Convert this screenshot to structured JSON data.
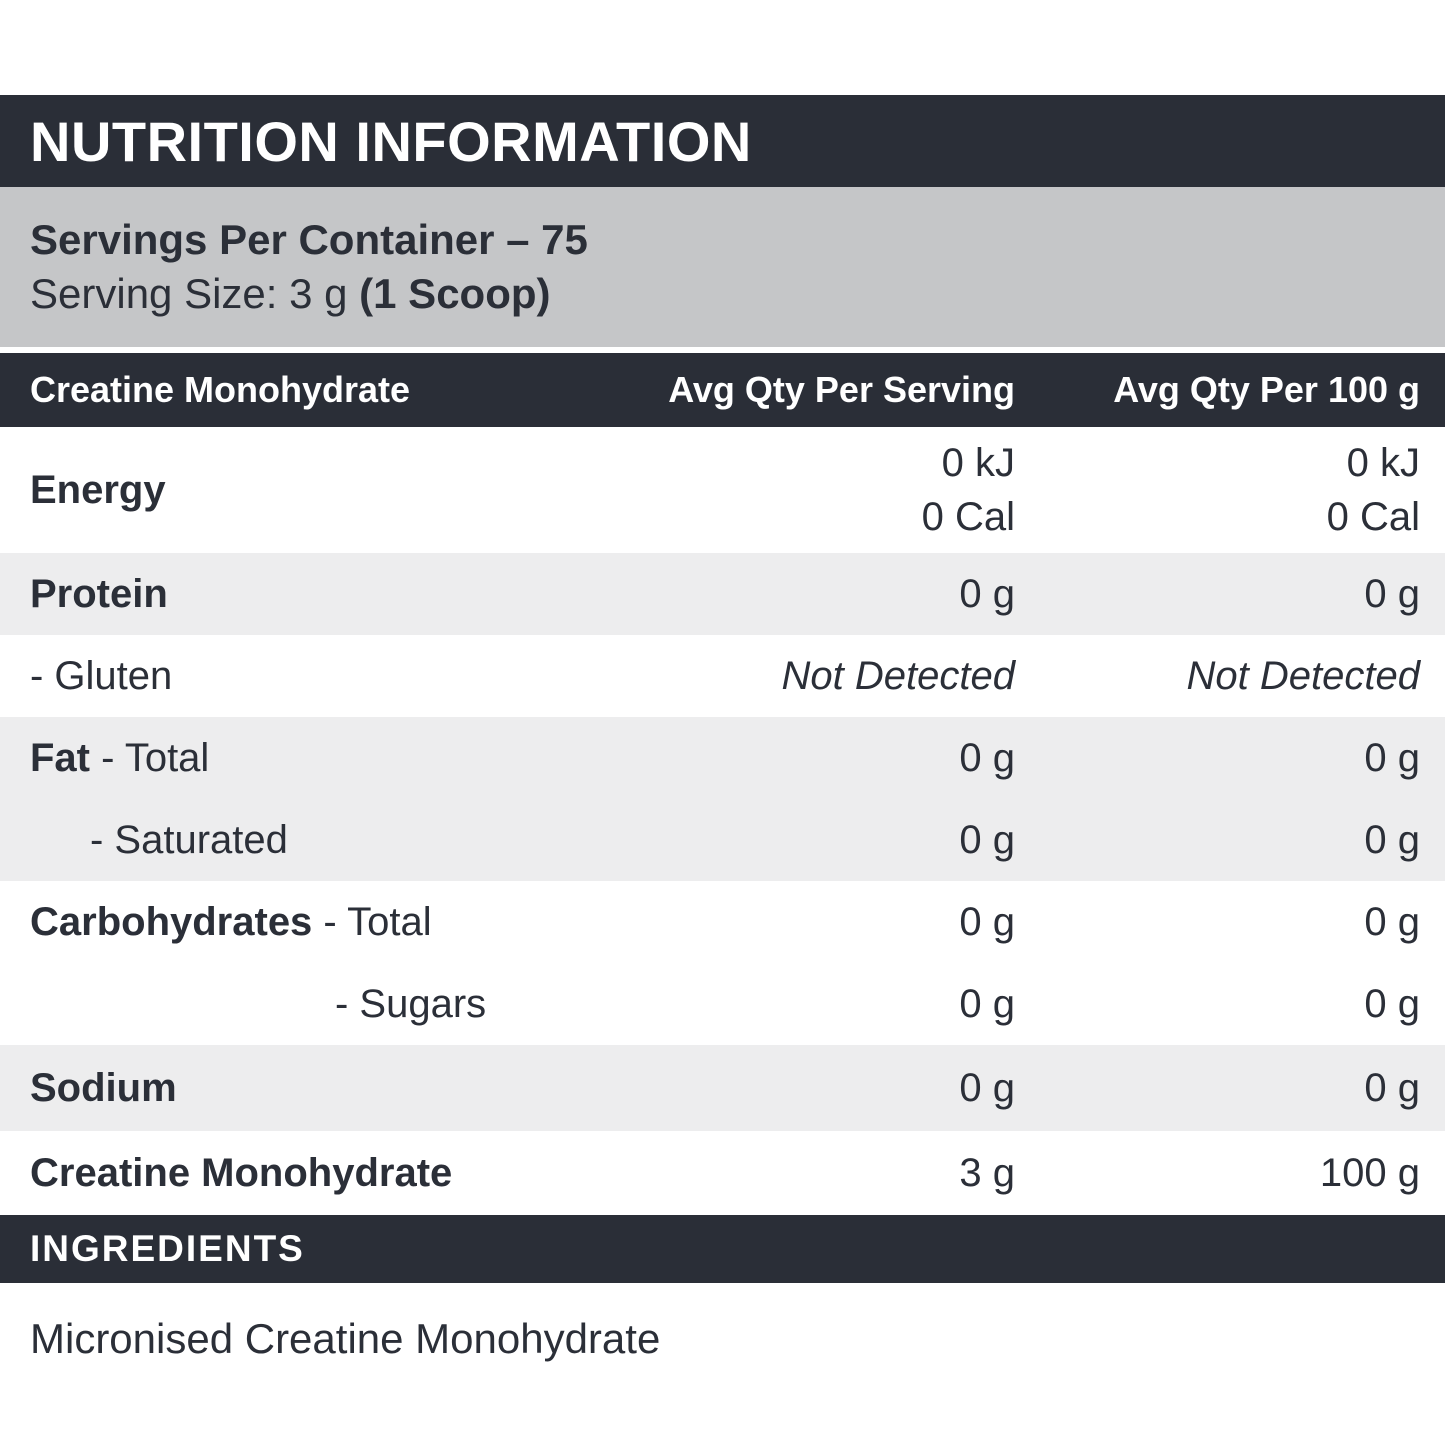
{
  "title": "NUTRITION INFORMATION",
  "servings": {
    "per_container": "Servings Per Container – 75",
    "size_prefix": "Serving Size: 3 g ",
    "size_bold": "(1 Scoop)"
  },
  "table": {
    "header": {
      "col1": "Creatine Monohydrate",
      "col2": "Avg Qty Per Serving",
      "col3": "Avg Qty Per 100 g"
    },
    "energy": {
      "label": "Energy",
      "serving_kj": "0 kJ",
      "serving_cal": "0 Cal",
      "per100_kj": "0 kJ",
      "per100_cal": "0 Cal"
    },
    "rows": [
      {
        "bold": "Protein",
        "rest": "",
        "serving": "0 g",
        "per100": "0 g"
      },
      {
        "bold": "",
        "rest": "- Gluten",
        "serving": "Not Detected",
        "per100": "Not Detected"
      },
      {
        "bold": "Fat",
        "rest": " - Total",
        "serving": "0 g",
        "per100": "0 g"
      },
      {
        "bold": "",
        "rest": "- Saturated",
        "serving": "0 g",
        "per100": "0 g"
      },
      {
        "bold": "Carbohydrates",
        "rest": " - Total",
        "serving": "0 g",
        "per100": "0 g"
      },
      {
        "bold": "",
        "rest": "- Sugars",
        "serving": "0 g",
        "per100": "0 g"
      },
      {
        "bold": "Sodium",
        "rest": "",
        "serving": "0 g",
        "per100": "0 g"
      },
      {
        "bold": "Creatine Monohydrate",
        "rest": "",
        "serving": "3 g",
        "per100": "100 g"
      }
    ]
  },
  "ingredients": {
    "heading": "INGREDIENTS",
    "text": "Micronised Creatine Monohydrate"
  },
  "colors": {
    "dark": "#2a2e37",
    "band_gray": "#c5c6c8",
    "row_gray": "#ededee",
    "text": "#2b2f38"
  }
}
